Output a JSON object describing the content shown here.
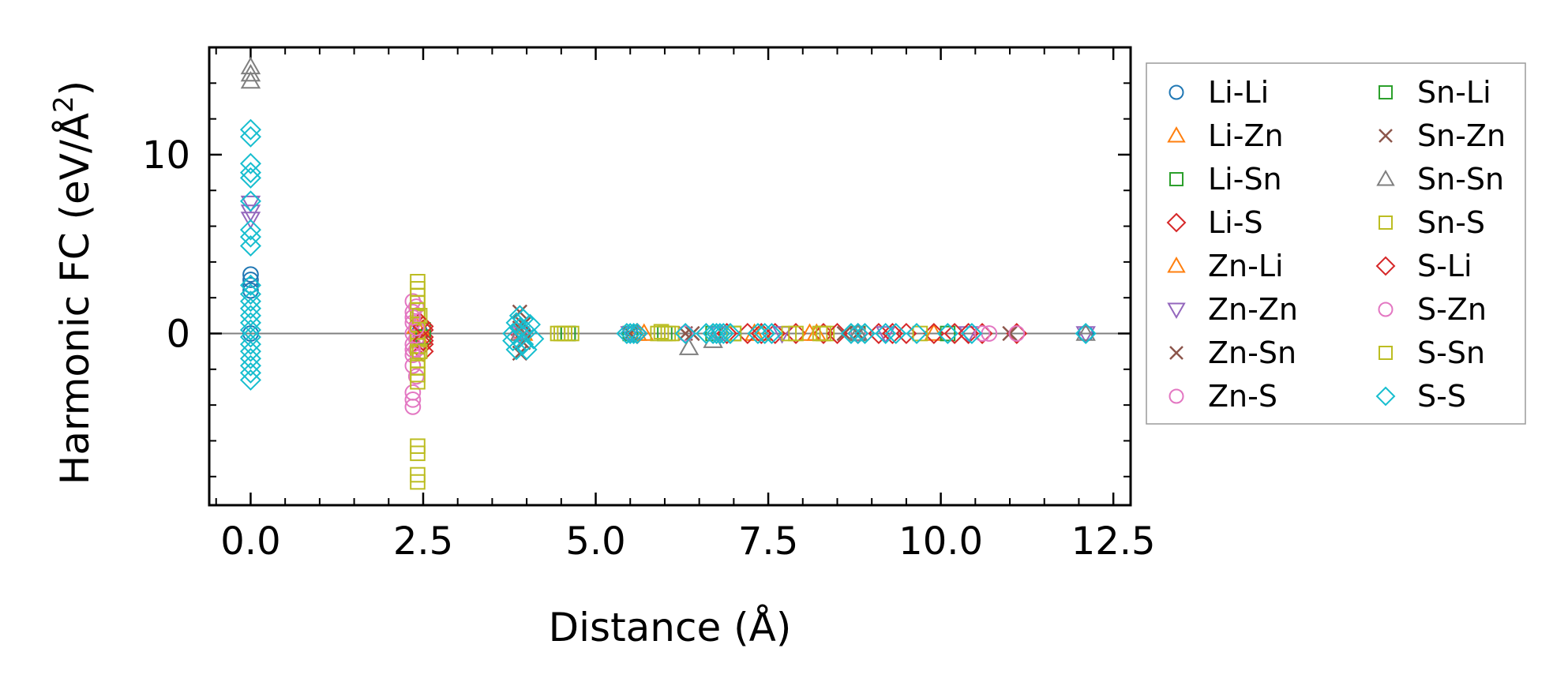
{
  "chart_data": {
    "type": "scatter",
    "title": "",
    "xlabel": "Distance (Å)",
    "ylabel_prefix": "Harmonic FC (eV/Å",
    "ylabel_sup": "2",
    "ylabel_suffix": ")",
    "xlim": [
      -0.6,
      12.75
    ],
    "ylim": [
      -9.6,
      16.0
    ],
    "x_ticks": [
      0.0,
      2.5,
      5.0,
      7.5,
      10.0,
      12.5
    ],
    "x_tick_labels": [
      "0.0",
      "2.5",
      "5.0",
      "7.5",
      "10.0",
      "12.5"
    ],
    "y_ticks": [
      0,
      10
    ],
    "y_tick_labels": [
      "0",
      "10"
    ],
    "x_minor_step": 0.5,
    "y_minor_step": 2,
    "grid": false,
    "zero_line": true,
    "legend_placement": "outside-right",
    "series": [
      {
        "name": "Li-Li",
        "marker": "circle",
        "color": "#1f77b4",
        "points": [
          [
            0,
            3.3
          ],
          [
            0,
            3.0
          ],
          [
            0,
            2.7
          ],
          [
            0,
            2.4
          ],
          [
            0,
            0.0
          ],
          [
            2.45,
            0.1
          ],
          [
            3.95,
            0.05
          ],
          [
            5.55,
            0.0
          ],
          [
            6.8,
            0.0
          ],
          [
            12.1,
            0.0
          ]
        ]
      },
      {
        "name": "Li-Zn",
        "marker": "triangle-up",
        "color": "#ff7f0e",
        "points": [
          [
            2.4,
            0.4
          ],
          [
            2.45,
            -0.3
          ],
          [
            3.9,
            0.0
          ],
          [
            5.6,
            0.0
          ],
          [
            7.3,
            0.0
          ],
          [
            8.2,
            0.0
          ],
          [
            9.9,
            0.0
          ]
        ]
      },
      {
        "name": "Li-Sn",
        "marker": "square",
        "color": "#2ca02c",
        "points": [
          [
            2.5,
            0.2
          ],
          [
            4.6,
            0.0
          ],
          [
            5.5,
            0.0
          ],
          [
            6.7,
            0.0
          ],
          [
            8.8,
            0.0
          ],
          [
            10.1,
            0.0
          ]
        ]
      },
      {
        "name": "Li-S",
        "marker": "diamond",
        "color": "#d62728",
        "points": [
          [
            2.45,
            0.6
          ],
          [
            2.5,
            0.2
          ],
          [
            2.5,
            -0.2
          ],
          [
            2.5,
            -0.6
          ],
          [
            2.5,
            -1.0
          ],
          [
            3.9,
            0.0
          ],
          [
            5.6,
            0.0
          ],
          [
            6.9,
            0.0
          ],
          [
            7.2,
            0.0
          ],
          [
            7.6,
            0.0
          ],
          [
            7.9,
            0.0
          ],
          [
            8.3,
            0.0
          ],
          [
            8.8,
            0.0
          ],
          [
            9.1,
            0.0
          ],
          [
            9.5,
            0.0
          ],
          [
            9.9,
            0.0
          ],
          [
            10.2,
            0.0
          ],
          [
            10.6,
            0.0
          ],
          [
            11.1,
            0.0
          ]
        ]
      },
      {
        "name": "Zn-Li",
        "marker": "triangle-up",
        "color": "#ff7f0e",
        "points": [
          [
            2.45,
            0.3
          ],
          [
            3.95,
            0.0
          ],
          [
            5.7,
            0.0
          ],
          [
            7.4,
            0.0
          ],
          [
            8.1,
            0.0
          ]
        ]
      },
      {
        "name": "Zn-Zn",
        "marker": "triangle-down",
        "color": "#9467bd",
        "points": [
          [
            0,
            7.3
          ],
          [
            0,
            6.8
          ],
          [
            0,
            6.4
          ],
          [
            3.9,
            0.0
          ],
          [
            5.5,
            0.0
          ],
          [
            6.8,
            0.0
          ],
          [
            7.7,
            0.0
          ],
          [
            9.2,
            0.0
          ],
          [
            10.4,
            0.0
          ],
          [
            12.1,
            0.0
          ]
        ]
      },
      {
        "name": "Zn-Sn",
        "marker": "x",
        "color": "#8c564b",
        "points": [
          [
            3.9,
            1.2
          ],
          [
            3.9,
            -1.1
          ],
          [
            3.95,
            0.5
          ],
          [
            5.5,
            0.0
          ],
          [
            6.4,
            0.0
          ],
          [
            8.8,
            0.0
          ],
          [
            11.0,
            0.0
          ]
        ]
      },
      {
        "name": "Zn-S",
        "marker": "circle",
        "color": "#e377c2",
        "points": [
          [
            2.35,
            1.8
          ],
          [
            2.35,
            1.2
          ],
          [
            2.35,
            0.6
          ],
          [
            2.35,
            0.0
          ],
          [
            2.35,
            -0.6
          ],
          [
            2.35,
            -1.2
          ],
          [
            2.35,
            -1.8
          ],
          [
            2.35,
            -3.3
          ],
          [
            2.35,
            -3.7
          ],
          [
            2.35,
            -4.1
          ],
          [
            2.4,
            1.5
          ],
          [
            2.4,
            -0.3
          ],
          [
            2.4,
            -0.9
          ],
          [
            2.4,
            -2.4
          ],
          [
            3.9,
            0.0
          ],
          [
            6.3,
            0.0
          ],
          [
            6.8,
            0.0
          ],
          [
            8.8,
            0.0
          ],
          [
            10.7,
            0.0
          ],
          [
            11.1,
            0.0
          ]
        ]
      },
      {
        "name": "Sn-Li",
        "marker": "square",
        "color": "#2ca02c",
        "points": [
          [
            2.5,
            -0.2
          ],
          [
            4.6,
            0.0
          ],
          [
            6.0,
            0.0
          ],
          [
            7.0,
            0.0
          ]
        ]
      },
      {
        "name": "Sn-Zn",
        "marker": "x",
        "color": "#8c564b",
        "points": [
          [
            3.9,
            0.3
          ],
          [
            3.95,
            -0.5
          ],
          [
            6.3,
            0.0
          ],
          [
            8.6,
            0.0
          ]
        ]
      },
      {
        "name": "Sn-Sn",
        "marker": "triangle-up",
        "color": "#7f7f7f",
        "points": [
          [
            0,
            14.9
          ],
          [
            0,
            14.5
          ],
          [
            0,
            14.1
          ],
          [
            3.9,
            0.0
          ],
          [
            6.35,
            -0.8
          ],
          [
            6.7,
            -0.4
          ],
          [
            8.8,
            0.0
          ],
          [
            12.1,
            0.0
          ]
        ]
      },
      {
        "name": "Sn-S",
        "marker": "square",
        "color": "#bcbd22",
        "points": [
          [
            2.42,
            2.9
          ],
          [
            2.42,
            2.5
          ],
          [
            2.42,
            2.1
          ],
          [
            2.42,
            1.7
          ],
          [
            2.42,
            1.3
          ],
          [
            2.42,
            0.9
          ],
          [
            2.42,
            0.5
          ],
          [
            2.42,
            0.1
          ],
          [
            2.42,
            -0.3
          ],
          [
            2.42,
            -0.7
          ],
          [
            2.42,
            -1.1
          ],
          [
            2.42,
            -1.5
          ],
          [
            2.42,
            -1.9
          ],
          [
            2.42,
            -2.3
          ],
          [
            2.42,
            -2.7
          ],
          [
            2.42,
            -6.3
          ],
          [
            2.42,
            -6.7
          ],
          [
            2.42,
            -7.9
          ],
          [
            2.42,
            -8.3
          ],
          [
            4.45,
            0.0
          ],
          [
            4.55,
            0.0
          ],
          [
            4.65,
            0.0
          ],
          [
            5.95,
            0.1
          ],
          [
            6.05,
            0.0
          ],
          [
            7.0,
            0.0
          ],
          [
            7.8,
            0.0
          ],
          [
            8.25,
            0.0
          ],
          [
            8.35,
            0.0
          ],
          [
            9.7,
            0.0
          ]
        ]
      },
      {
        "name": "S-Li",
        "marker": "diamond",
        "color": "#d62728",
        "points": [
          [
            2.5,
            0.4
          ],
          [
            2.5,
            -0.4
          ],
          [
            5.6,
            0.0
          ],
          [
            7.4,
            0.0
          ],
          [
            8.5,
            0.0
          ],
          [
            9.3,
            0.0
          ],
          [
            10.4,
            0.0
          ]
        ]
      },
      {
        "name": "S-Zn",
        "marker": "circle",
        "color": "#e377c2",
        "points": [
          [
            2.35,
            0.9
          ],
          [
            2.35,
            -0.9
          ],
          [
            2.4,
            0.3
          ],
          [
            6.3,
            0.0
          ],
          [
            10.6,
            0.0
          ]
        ]
      },
      {
        "name": "S-Sn",
        "marker": "square",
        "color": "#bcbd22",
        "points": [
          [
            2.45,
            1.0
          ],
          [
            2.45,
            -1.0
          ],
          [
            4.5,
            0.0
          ],
          [
            5.9,
            0.0
          ],
          [
            6.1,
            0.0
          ],
          [
            7.9,
            0.0
          ],
          [
            8.3,
            0.0
          ]
        ]
      },
      {
        "name": "S-S",
        "marker": "diamond",
        "color": "#17becf",
        "points": [
          [
            0,
            11.4
          ],
          [
            0,
            11.0
          ],
          [
            0,
            9.5
          ],
          [
            0,
            9.0
          ],
          [
            0,
            8.7
          ],
          [
            0,
            7.4
          ],
          [
            0,
            5.8
          ],
          [
            0,
            5.4
          ],
          [
            0,
            4.9
          ],
          [
            0,
            2.7
          ],
          [
            0,
            2.2
          ],
          [
            0,
            1.8
          ],
          [
            0,
            1.4
          ],
          [
            0,
            1.0
          ],
          [
            0,
            0.6
          ],
          [
            0,
            0.2
          ],
          [
            0,
            -0.2
          ],
          [
            0,
            -0.6
          ],
          [
            0,
            -1.0
          ],
          [
            0,
            -1.4
          ],
          [
            0,
            -1.8
          ],
          [
            0,
            -2.2
          ],
          [
            0,
            -2.6
          ],
          [
            3.8,
            0.0
          ],
          [
            3.8,
            -0.4
          ],
          [
            3.85,
            0.6
          ],
          [
            3.85,
            -0.9
          ],
          [
            3.9,
            1.0
          ],
          [
            3.9,
            0.3
          ],
          [
            3.95,
            -0.6
          ],
          [
            3.95,
            0.8
          ],
          [
            4.0,
            0.1
          ],
          [
            4.0,
            -0.9
          ],
          [
            4.05,
            0.5
          ],
          [
            4.1,
            -0.3
          ],
          [
            5.45,
            0.0
          ],
          [
            5.5,
            0.0
          ],
          [
            5.55,
            0.0
          ],
          [
            5.6,
            0.0
          ],
          [
            6.3,
            0.0
          ],
          [
            6.6,
            0.0
          ],
          [
            6.7,
            0.0
          ],
          [
            6.75,
            0.0
          ],
          [
            6.8,
            0.0
          ],
          [
            6.85,
            0.0
          ],
          [
            6.95,
            0.0
          ],
          [
            7.35,
            0.0
          ],
          [
            7.45,
            0.0
          ],
          [
            7.55,
            0.0
          ],
          [
            8.7,
            0.0
          ],
          [
            8.8,
            0.0
          ],
          [
            8.9,
            0.0
          ],
          [
            9.2,
            0.0
          ],
          [
            9.35,
            0.0
          ],
          [
            9.65,
            0.0
          ],
          [
            10.1,
            0.0
          ],
          [
            10.45,
            0.0
          ],
          [
            12.1,
            0.0
          ]
        ]
      }
    ]
  }
}
